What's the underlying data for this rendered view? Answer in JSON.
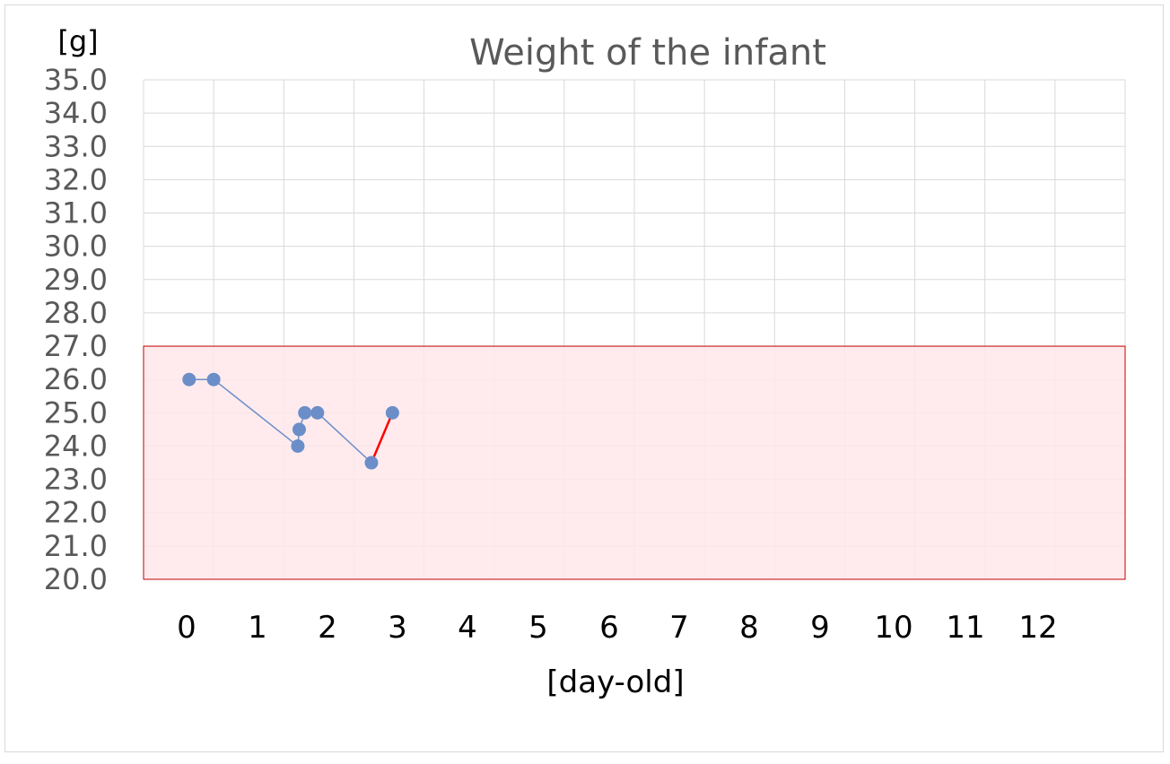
{
  "chart_data": {
    "type": "line",
    "title": "Weight of the infant",
    "ylabel": "[g]",
    "xlabel": "[day-old]",
    "ylim": [
      20.0,
      35.0
    ],
    "xlim": [
      -0.4,
      13.6
    ],
    "yticks": [
      "20.0",
      "21.0",
      "22.0",
      "23.0",
      "24.0",
      "25.0",
      "26.0",
      "27.0",
      "28.0",
      "29.0",
      "30.0",
      "31.0",
      "32.0",
      "33.0",
      "34.0",
      "35.0"
    ],
    "xticks": [
      "0",
      "1",
      "2",
      "3",
      "4",
      "5",
      "6",
      "7",
      "8",
      "9",
      "10",
      "11",
      "12"
    ],
    "grid": true,
    "normal_range_band": {
      "y_from": 20.0,
      "y_to": 27.0,
      "fill": "#ffe8ea",
      "stroke": "#c00000"
    },
    "series": [
      {
        "color": "#6b8ec9",
        "points": [
          {
            "x": 0.25,
            "y": 26.0
          },
          {
            "x": 0.6,
            "y": 26.0
          },
          {
            "x": 1.8,
            "y": 24.0
          },
          {
            "x": 1.82,
            "y": 24.5
          },
          {
            "x": 1.9,
            "y": 25.0
          },
          {
            "x": 2.08,
            "y": 25.0
          },
          {
            "x": 2.85,
            "y": 23.5
          },
          {
            "x": 3.15,
            "y": 25.0
          }
        ],
        "highlight_segment": {
          "from_index": 6,
          "to_index": 7,
          "color": "#ff0000"
        }
      }
    ]
  }
}
